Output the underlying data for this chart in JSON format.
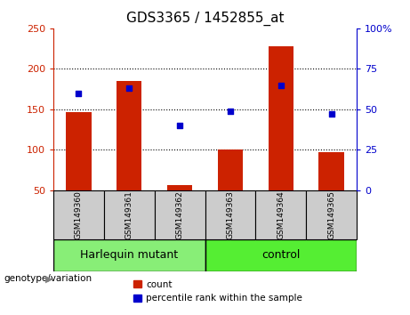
{
  "title": "GDS3365 / 1452855_at",
  "samples": [
    "GSM149360",
    "GSM149361",
    "GSM149362",
    "GSM149363",
    "GSM149364",
    "GSM149365"
  ],
  "counts": [
    147,
    185,
    57,
    100,
    228,
    97
  ],
  "percentile_ranks": [
    60,
    63,
    40,
    49,
    65,
    47
  ],
  "ylim_left": [
    50,
    250
  ],
  "ylim_right": [
    0,
    100
  ],
  "yticks_left": [
    50,
    100,
    150,
    200,
    250
  ],
  "yticks_right": [
    0,
    25,
    50,
    75,
    100
  ],
  "yticklabels_right": [
    "0",
    "25",
    "50",
    "75",
    "100%"
  ],
  "bar_color": "#cc2200",
  "dot_color": "#0000cc",
  "groups": [
    {
      "label": "Harlequin mutant",
      "start": 0,
      "end": 2,
      "color": "#88ee77"
    },
    {
      "label": "control",
      "start": 3,
      "end": 5,
      "color": "#55ee33"
    }
  ],
  "group_label": "genotype/variation",
  "legend_count_label": "count",
  "legend_pct_label": "percentile rank within the sample",
  "sample_box_color": "#cccccc",
  "plot_bg_color": "#ffffff",
  "outer_bg_color": "#ffffff"
}
